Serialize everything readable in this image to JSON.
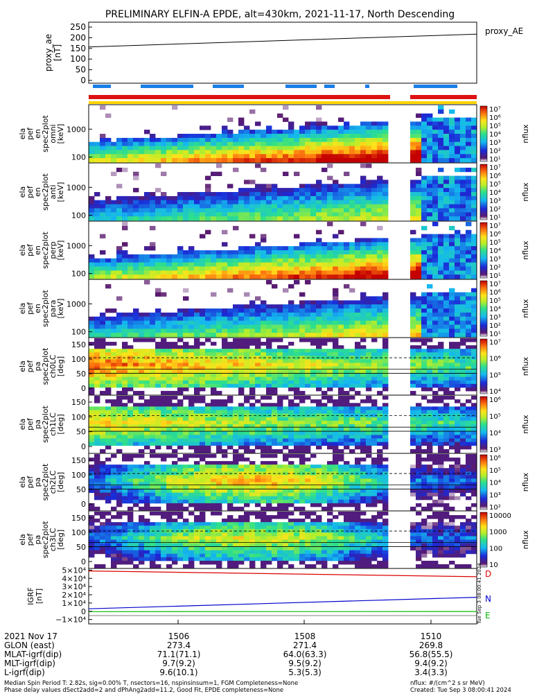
{
  "title": "PRELIMINARY ELFIN-A EPDE, alt=430km, 2021-11-17, North Descending",
  "proxy_panel": {
    "ylabel": [
      "proxy_ae",
      "[nT]"
    ],
    "series_label": "proxy_AE",
    "yticks": [
      "250",
      "200",
      "150",
      "100",
      "50",
      "0"
    ]
  },
  "spec_panels": [
    {
      "ylabel": [
        "ela",
        "pef",
        "en",
        "spec2plot",
        "omni",
        "[keV]"
      ],
      "yticks": [
        "1000",
        "100"
      ],
      "cbar_ticks": [
        "10⁷",
        "10⁶",
        "10⁵",
        "10⁴",
        "10³",
        "10²",
        "10¹"
      ],
      "cbar_label": "nflux"
    },
    {
      "ylabel": [
        "ela",
        "pef",
        "en",
        "spec2plot",
        "anti",
        "[keV]"
      ],
      "yticks": [
        "1000",
        "100"
      ],
      "cbar_ticks": [
        "10⁷",
        "10⁶",
        "10⁵",
        "10⁴",
        "10³",
        "10²",
        "10¹"
      ],
      "cbar_label": "nflux"
    },
    {
      "ylabel": [
        "ela",
        "pef",
        "en",
        "spec2plot",
        "perp",
        "[keV]"
      ],
      "yticks": [
        "1000",
        "100"
      ],
      "cbar_ticks": [
        "10⁷",
        "10⁶",
        "10⁵",
        "10⁴",
        "10³",
        "10²",
        "10¹"
      ],
      "cbar_label": "nflux"
    },
    {
      "ylabel": [
        "ela",
        "pef",
        "en",
        "spec2plot",
        "para",
        "[keV]"
      ],
      "yticks": [
        "1000",
        "100"
      ],
      "cbar_ticks": [
        "10⁷",
        "10⁶",
        "10⁵",
        "10⁴",
        "10³",
        "10²",
        "10¹"
      ],
      "cbar_label": "nflux"
    },
    {
      "ylabel": [
        "ela",
        "pef",
        "pa",
        "spec2plot",
        "ch0LC",
        "[deg]"
      ],
      "yticks": [
        "150",
        "100",
        "50",
        "0"
      ],
      "cbar_ticks": [
        "10⁷",
        "10⁶",
        "10⁵",
        "10⁴"
      ],
      "cbar_label": "nflux"
    },
    {
      "ylabel": [
        "ela",
        "pef",
        "pa",
        "spec2plot",
        "ch1LC",
        "[deg]"
      ],
      "yticks": [
        "150",
        "100",
        "50",
        "0"
      ],
      "cbar_ticks": [
        "10⁶",
        "10⁵",
        "10⁴",
        "10³"
      ],
      "cbar_label": "nflux"
    },
    {
      "ylabel": [
        "ela",
        "pef",
        "pa",
        "spec2plot",
        "ch2LC",
        "[deg]"
      ],
      "yticks": [
        "150",
        "100",
        "50",
        "0"
      ],
      "cbar_ticks": [
        "10⁶",
        "10⁵",
        "10⁴",
        "10³",
        "10²"
      ],
      "cbar_label": "nflux"
    },
    {
      "ylabel": [
        "ela",
        "pef",
        "pa",
        "spec2plot",
        "ch3LC",
        "[deg]"
      ],
      "yticks": [
        "150",
        "100",
        "50",
        "0"
      ],
      "cbar_ticks": [
        "10000",
        "1000",
        "100",
        "10"
      ],
      "cbar_label": "nflux"
    }
  ],
  "igrf_panel": {
    "ylabel": [
      "IGRF",
      "[nT]"
    ],
    "yticks": [
      "5×10⁴",
      "4×10⁴",
      "3×10⁴",
      "2×10⁴",
      "1×10⁴",
      "0",
      "−1×10⁴"
    ],
    "legend": [
      {
        "label": "D",
        "color": "#dd0000"
      },
      {
        "label": "N",
        "color": "#0000cc"
      },
      {
        "label": "E",
        "color": "#00bb00"
      }
    ],
    "vertical_note": "Tue Sep 3 08:00:41 2024"
  },
  "footer_rows": [
    {
      "label": "2021 Nov 17",
      "values": [
        "1506",
        "1508",
        "1510"
      ]
    },
    {
      "label": "GLON (east)",
      "values": [
        "273.4",
        "271.4",
        "269.8"
      ]
    },
    {
      "label": "MLAT-igrf(dip)",
      "values": [
        "71.1(71.1)",
        "64.0(63.3)",
        "56.8(55.5)"
      ]
    },
    {
      "label": "MLT-igrf(dip)",
      "values": [
        "9.7(9.2)",
        "9.5(9.2)",
        "9.4(9.2)"
      ]
    },
    {
      "label": "L-igrf(dip)",
      "values": [
        "9.6(10.1)",
        "5.3(5.3)",
        "3.4(3.3)"
      ]
    }
  ],
  "notes": {
    "line1": "Median Spin Period T: 2.82s, sig=0.00% T, nsectors=16, nspinsinsum=1, FGM Completeness=None",
    "line2": "Phase delay values dSect2add=2 and dPhAng2add=11.2, Good Fit, EPDE completeness=None",
    "units": "nflux: #/(cm^2 s sr MeV)",
    "created": "Created: Tue Sep  3 08:00:41 2024"
  },
  "chart_data": {
    "type": "heatmap",
    "title": "PRELIMINARY ELFIN-A EPDE, alt=430km, 2021-11-17, North Descending",
    "x_ticks": [
      "1506",
      "1508",
      "1510"
    ],
    "proxy_ae": {
      "x": [
        "start",
        "end"
      ],
      "y": [
        157,
        217
      ],
      "ylim": [
        0,
        260
      ]
    },
    "igrf": {
      "ylim": [
        -12000,
        52000
      ],
      "series": [
        {
          "name": "D",
          "y": [
            49000,
            42000
          ]
        },
        {
          "name": "N",
          "y": [
            3000,
            17000
          ]
        },
        {
          "name": "E",
          "y": [
            -500,
            -300
          ]
        }
      ]
    }
  }
}
